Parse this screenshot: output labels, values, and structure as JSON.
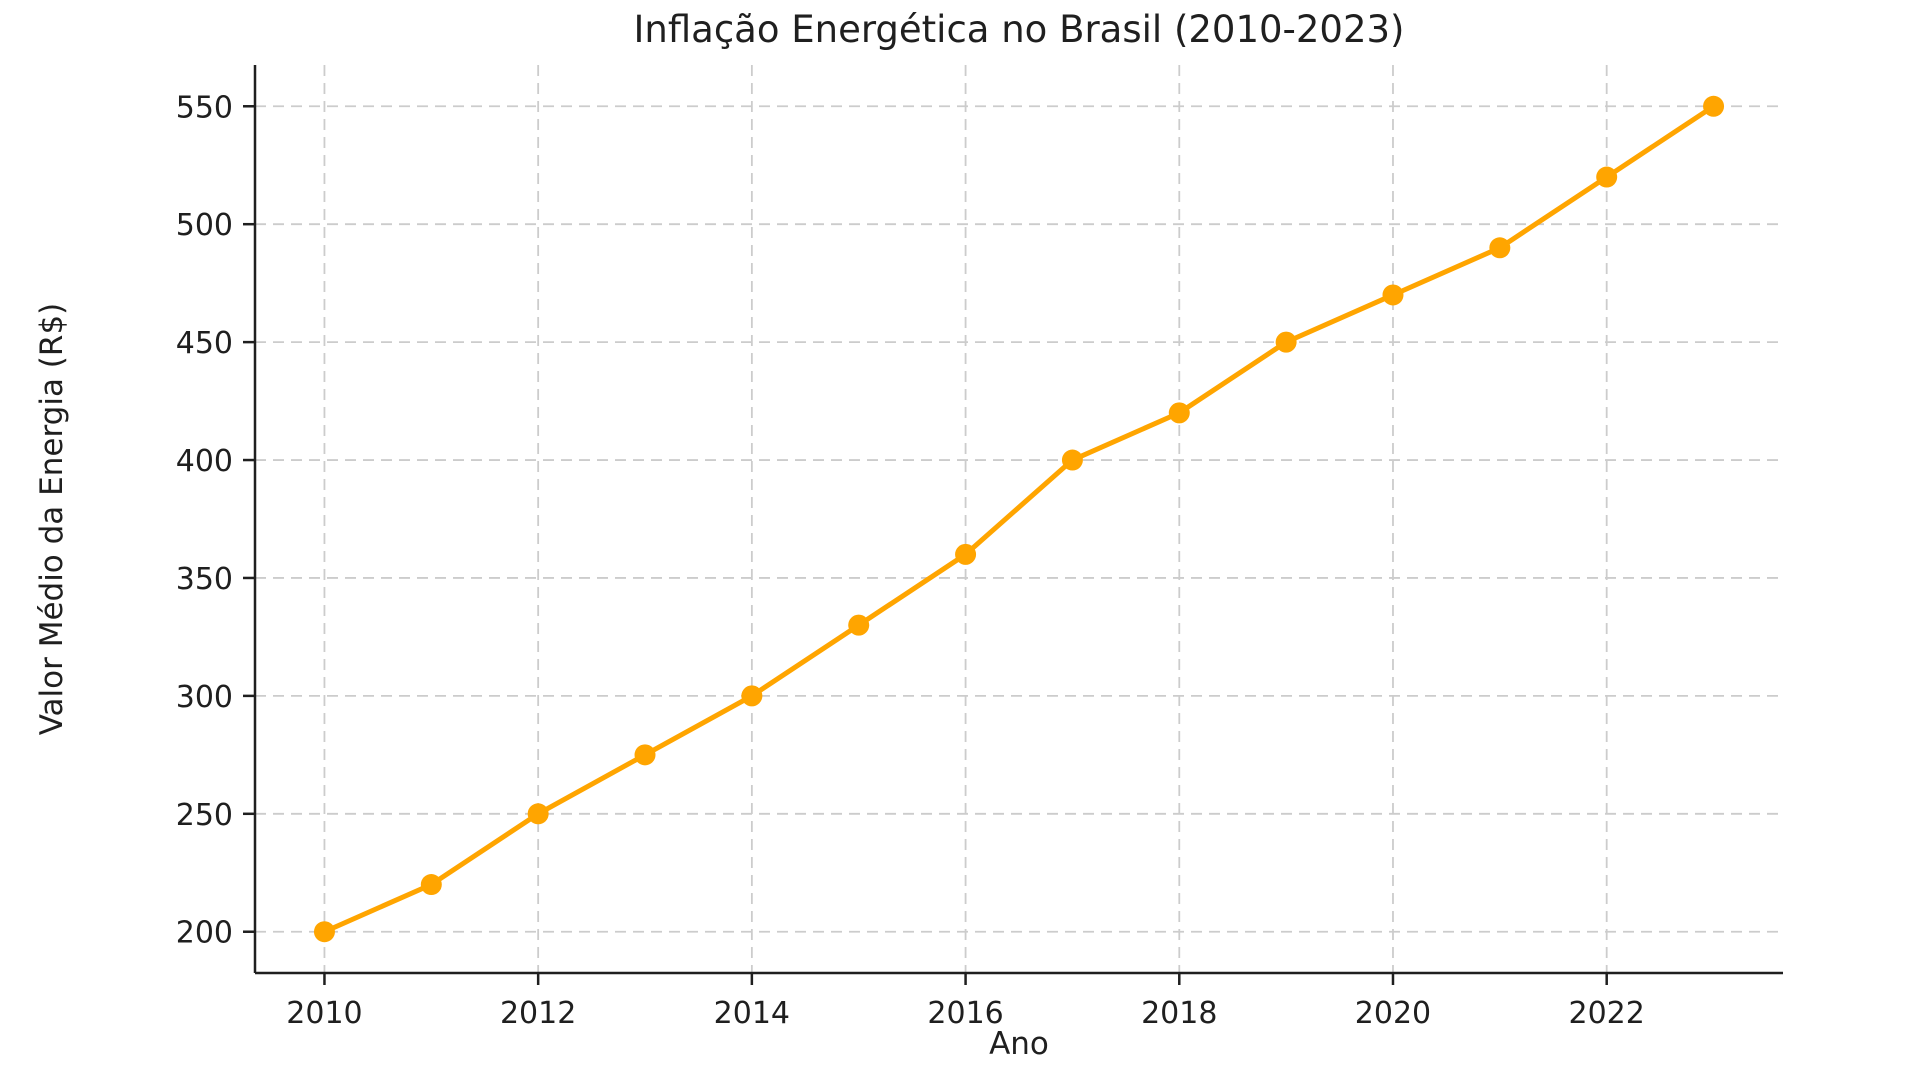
{
  "chart_data": {
    "type": "line",
    "title": "Inflação Energética no Brasil (2010-2023)",
    "xlabel": "Ano",
    "ylabel": "Valor Médio da Energia (R$)",
    "x": [
      2010,
      2011,
      2012,
      2013,
      2014,
      2015,
      2016,
      2017,
      2018,
      2019,
      2020,
      2021,
      2022,
      2023
    ],
    "values": [
      200,
      220,
      250,
      275,
      300,
      330,
      360,
      400,
      420,
      450,
      470,
      490,
      520,
      550
    ],
    "x_ticks": [
      2010,
      2012,
      2014,
      2016,
      2018,
      2020,
      2022
    ],
    "y_ticks": [
      200,
      250,
      300,
      350,
      400,
      450,
      500,
      550
    ],
    "xlim": [
      2009.35,
      2023.65
    ],
    "ylim": [
      182.5,
      567.5
    ],
    "grid": true,
    "grid_style": "dashed",
    "legend": "none",
    "line_color": "#FFA500",
    "marker": "circle",
    "marker_color": "#FFA500",
    "grid_color": "#cccccc",
    "axis_color": "#1f1f1f",
    "text_color": "#1f1f1f",
    "background": "#ffffff"
  }
}
